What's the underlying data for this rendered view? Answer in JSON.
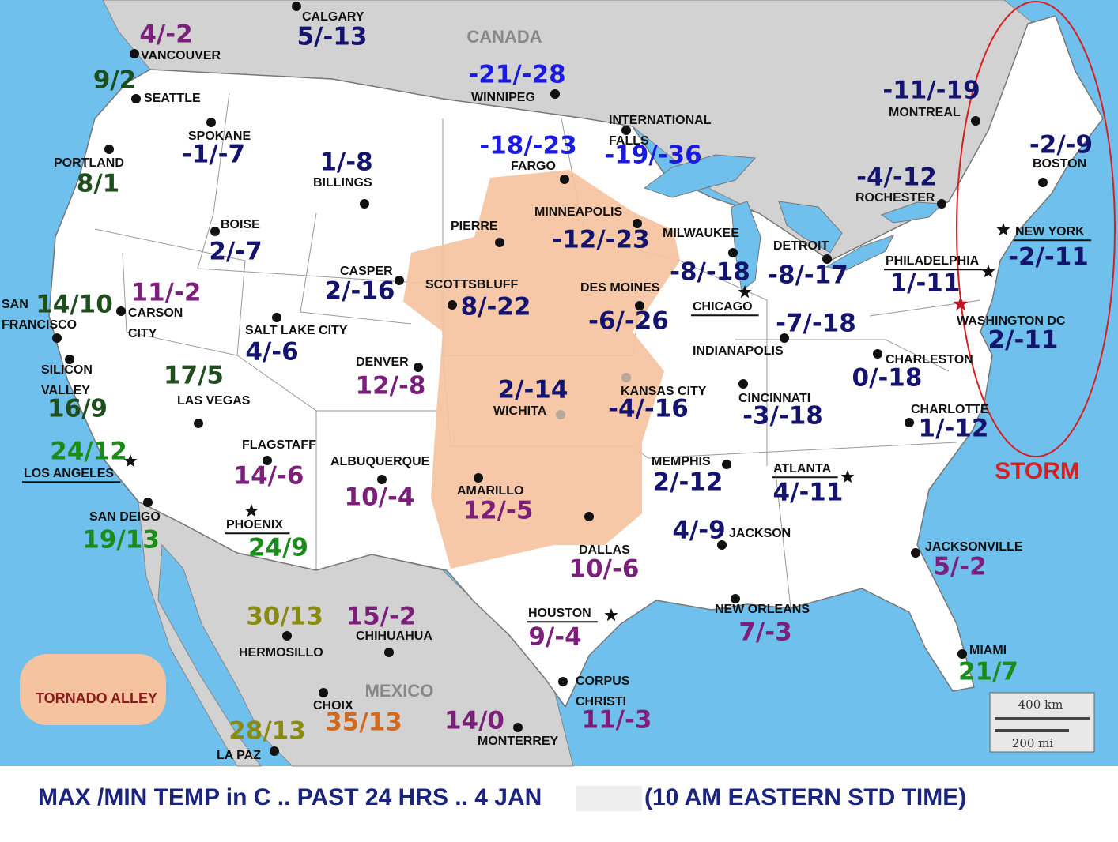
{
  "map": {
    "canada": "CANADA",
    "mexico": "MEXICO",
    "storm_label": "STORM",
    "legend_label": "TORNADO ALLEY",
    "scale_km": "400 km",
    "scale_mi": "200 mi"
  },
  "cities": [
    {
      "name": "VANCOUVER",
      "temp": "4/-2",
      "temp_color": "#7b1f7b",
      "marker": "dot"
    },
    {
      "name": "CALGARY",
      "temp": "5/-13",
      "temp_color": "#14146e",
      "marker": "dot"
    },
    {
      "name": "SEATTLE",
      "temp": "9/2",
      "temp_color": "#1e4d1e",
      "marker": "dot"
    },
    {
      "name": "WINNIPEG",
      "temp": "-21/-28",
      "temp_color": "#1a1ae0",
      "marker": "dot"
    },
    {
      "name": "MONTREAL",
      "temp": "-11/-19",
      "temp_color": "#14146e",
      "marker": "dot"
    },
    {
      "name": "SPOKANE",
      "temp": "-1/-7",
      "temp_color": "#14146e",
      "marker": "dot"
    },
    {
      "name": "PORTLAND",
      "temp": "8/1",
      "temp_color": "#1e4d1e",
      "marker": "dot"
    },
    {
      "name": [
        "INTERNATIONAL",
        "FALLS"
      ],
      "temp": "-19/-36",
      "temp_color": "#1a1ae0",
      "marker": "dot"
    },
    {
      "name": "FARGO",
      "temp": "-18/-23",
      "temp_color": "#1a1ae0",
      "marker": "dot"
    },
    {
      "name": "BILLINGS",
      "temp": "1/-8",
      "temp_color": "#14146e",
      "marker": "dot"
    },
    {
      "name": "BOSTON",
      "temp": "-2/-9",
      "temp_color": "#14146e",
      "marker": "dot"
    },
    {
      "name": "ROCHESTER",
      "temp": "-4/-12",
      "temp_color": "#14146e",
      "marker": "dot"
    },
    {
      "name": "MINNEAPOLIS",
      "temp": "-12/-23",
      "temp_color": "#14146e",
      "marker": "dot"
    },
    {
      "name": "PIERRE",
      "marker": "dot"
    },
    {
      "name": "BOISE",
      "temp": "2/-7",
      "temp_color": "#14146e",
      "marker": "dot"
    },
    {
      "name": "NEW YORK",
      "temp": "-2/-11",
      "temp_color": "#14146e",
      "marker": "star",
      "underline": true
    },
    {
      "name": "MILWAUKEE",
      "temp": "-8/-18",
      "temp_color": "#14146e",
      "marker": "dot"
    },
    {
      "name": "DETROIT",
      "temp": "-8/-17",
      "temp_color": "#14146e",
      "marker": "dot"
    },
    {
      "name": "PHILADELPHIA",
      "temp": "1/-11",
      "temp_color": "#14146e",
      "marker": "star",
      "underline": true
    },
    {
      "name": "CASPER",
      "temp": "2/-16",
      "temp_color": "#14146e",
      "marker": "dot"
    },
    {
      "name": "SCOTTSBLUFF",
      "temp": "8/-22",
      "temp_color": "#14146e",
      "marker": "dot"
    },
    {
      "name": "DES MOINES",
      "temp": "-6/-26",
      "temp_color": "#14146e",
      "marker": "dot"
    },
    {
      "name": "CHICAGO",
      "marker": "star",
      "underline": true
    },
    {
      "name": [
        "SAN",
        "FRANCISCO"
      ],
      "temp": "14/10",
      "temp_color": "#1e4d1e",
      "marker": "dot"
    },
    {
      "name": [
        "CARSON",
        "CITY"
      ],
      "temp": "11/-2",
      "temp_color": "#7b1f7b",
      "marker": "dot"
    },
    {
      "name": "SALT LAKE CITY",
      "temp": "4/-6",
      "temp_color": "#14146e",
      "marker": "dot"
    },
    {
      "name": "WASHINGTON DC",
      "temp": "2/-11",
      "temp_color": "#14146e",
      "marker": "redstar",
      "name_color": "#8b1a3a"
    },
    {
      "name": "INDIANAPOLIS",
      "temp": "-7/-18",
      "temp_color": "#14146e",
      "marker": "dot"
    },
    {
      "name": "CHARLESTON",
      "temp": "0/-18",
      "temp_color": "#14146e",
      "marker": "dot"
    },
    {
      "name": [
        "SILICON",
        "VALLEY"
      ],
      "temp": "16/9",
      "temp_color": "#1e4d1e",
      "marker": "dot"
    },
    {
      "name": "DENVER",
      "temp": "12/-8",
      "temp_color": "#7b1f7b",
      "marker": "dot"
    },
    {
      "name": "LAS VEGAS",
      "temp": "17/5",
      "temp_color": "#1e4d1e",
      "marker": "dot"
    },
    {
      "name": "KANSAS CITY",
      "temp": "-4/-16",
      "temp_color": "#14146e",
      "marker": "greydot"
    },
    {
      "name": "WICHITA",
      "temp": "2/-14",
      "temp_color": "#14146e",
      "marker": "greydot"
    },
    {
      "name": "CINCINNATI",
      "temp": "-3/-18",
      "temp_color": "#14146e",
      "marker": "dot"
    },
    {
      "name": "CHARLOTTE",
      "temp": "1/-12",
      "temp_color": "#14146e",
      "marker": "dot"
    },
    {
      "name": "LOS ANGELES",
      "temp": "24/12",
      "temp_color": "#1a8c1a",
      "marker": "star",
      "underline": true
    },
    {
      "name": "FLAGSTAFF",
      "temp": "14/-6",
      "temp_color": "#7b1f7b",
      "marker": "dot"
    },
    {
      "name": "ALBUQUERQUE",
      "temp": "10/-4",
      "temp_color": "#7b1f7b",
      "marker": "dot"
    },
    {
      "name": "MEMPHIS",
      "temp": "2/-12",
      "temp_color": "#14146e",
      "marker": "dot"
    },
    {
      "name": "ATLANTA",
      "temp": "4/-11",
      "temp_color": "#14146e",
      "marker": "star",
      "underline": true
    },
    {
      "name": "AMARILLO",
      "temp": "12/-5",
      "temp_color": "#7b1f7b",
      "marker": "dot"
    },
    {
      "name": "SAN DEIGO",
      "temp": "19/13",
      "temp_color": "#1a8c1a",
      "marker": "dot"
    },
    {
      "name": "PHOENIX",
      "temp": "24/9",
      "temp_color": "#1a8c1a",
      "marker": "star",
      "underline": true
    },
    {
      "name": "JACKSON",
      "temp": "4/-9",
      "temp_color": "#14146e",
      "marker": "dot"
    },
    {
      "name": "DALLAS",
      "temp": "10/-6",
      "temp_color": "#7b1f7b",
      "marker": "dot"
    },
    {
      "name": "JACKSONVILLE",
      "temp": "5/-2",
      "temp_color": "#7b1f7b",
      "marker": "dot"
    },
    {
      "name": "HOUSTON",
      "temp": "9/-4",
      "temp_color": "#7b1f7b",
      "marker": "star",
      "underline": true
    },
    {
      "name": "NEW ORLEANS",
      "temp": "7/-3",
      "temp_color": "#7b1f7b",
      "marker": "dot"
    },
    {
      "name": "HERMOSILLO",
      "temp": "30/13",
      "temp_color": "#8a8a10",
      "marker": "dot"
    },
    {
      "name": "CHIHUAHUA",
      "temp": "15/-2",
      "temp_color": "#7b1f7b",
      "marker": "dot"
    },
    {
      "name": "MIAMI",
      "temp": "21/7",
      "temp_color": "#1a8c1a",
      "marker": "dot"
    },
    {
      "name": [
        "CORPUS",
        "CHRISTI"
      ],
      "temp": "11/-3",
      "temp_color": "#7b1f7b",
      "marker": "dot"
    },
    {
      "name": "CHOIX",
      "temp": "35/13",
      "temp_color": "#d2691e",
      "marker": "dot"
    },
    {
      "name": "MONTERREY",
      "temp": "14/0",
      "temp_color": "#7b1f7b",
      "marker": "dot"
    },
    {
      "name": "LA PAZ",
      "temp": "28/13",
      "temp_color": "#8a8a10",
      "marker": "dot"
    }
  ],
  "caption": {
    "left": "MAX /MIN TEMP in C .. PAST 24 HRS .. 4 JAN",
    "right": "(10 AM EASTERN STD TIME)"
  }
}
